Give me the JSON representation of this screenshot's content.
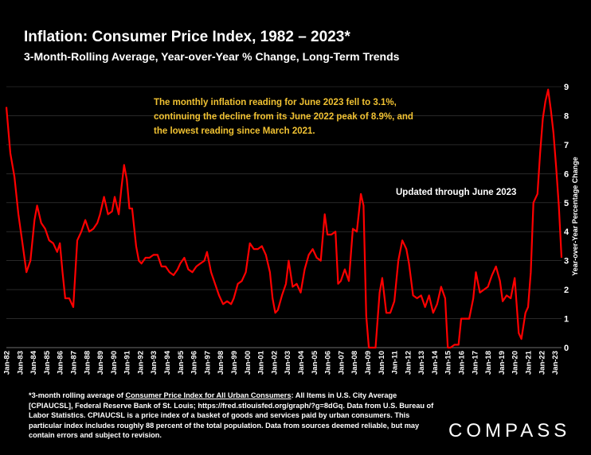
{
  "title": "Inflation: Consumer Price Index, 1982 – 2023*",
  "subtitle": "3-Month-Rolling Average, Year-over-Year % Change, Long-Term Trends",
  "annotation": "The monthly inflation reading for June 2023 fell to 3.1%, continuing the decline from its June 2022 peak of 8.9%, and the lowest reading since March 2021.",
  "updated_note": "Updated through June 2023",
  "footnote": {
    "prefix": "*3-month rolling average of ",
    "link_text": "Consumer Price Index for All Urban Consumers",
    "rest": ": All Items in U.S. City Average [CPIAUCSL], Federal Reserve Bank of St. Louis; https://fred.stlouisfed.org/graph/?g=8dGq. Data from U.S. Bureau of Labor Statistics. CPIAUCSL is a price index of a basket of goods and services paid by urban consumers. This particular index includes roughly 88 percent of the total population. Data from sources deemed reliable, but may contain errors and subject to revision."
  },
  "logo": "COMPASS",
  "colors": {
    "background": "#000000",
    "line": "#ff0000",
    "annotation": "#f1c232",
    "grid": "#404040"
  },
  "chart_data": {
    "type": "line",
    "title": "Inflation: Consumer Price Index, 1982 – 2023*",
    "ylabel": "Year-over-Year Percentage Change",
    "ylim": [
      0,
      9
    ],
    "yticks": [
      0,
      1,
      2,
      3,
      4,
      5,
      6,
      7,
      8,
      9
    ],
    "grid": true,
    "x_tick_labels": [
      "Jan-82",
      "Jan-83",
      "Jan-84",
      "Jan-85",
      "Jan-86",
      "Jan-87",
      "Jan-88",
      "Jan-89",
      "Jan-90",
      "Jan-91",
      "Jan-92",
      "Jan-93",
      "Jan-94",
      "Jan-95",
      "Jan-96",
      "Jan-97",
      "Jan-98",
      "Jan-99",
      "Jan-00",
      "Jan-01",
      "Jan-02",
      "Jan-03",
      "Jan-04",
      "Jan-05",
      "Jan-06",
      "Jan-07",
      "Jan-08",
      "Jan-09",
      "Jan-10",
      "Jan-11",
      "Jan-12",
      "Jan-13",
      "Jan-14",
      "Jan-15",
      "Jan-16",
      "Jan-17",
      "Jan-18",
      "Jan-19",
      "Jan-20",
      "Jan-21",
      "Jan-22",
      "Jan-23"
    ],
    "series": [
      {
        "values": [
          [
            1982.0,
            8.3
          ],
          [
            1982.3,
            6.7
          ],
          [
            1982.6,
            5.9
          ],
          [
            1982.9,
            4.6
          ],
          [
            1983.2,
            3.6
          ],
          [
            1983.5,
            2.6
          ],
          [
            1983.8,
            3.0
          ],
          [
            1984.1,
            4.4
          ],
          [
            1984.3,
            4.9
          ],
          [
            1984.6,
            4.3
          ],
          [
            1984.9,
            4.1
          ],
          [
            1985.2,
            3.7
          ],
          [
            1985.5,
            3.6
          ],
          [
            1985.8,
            3.3
          ],
          [
            1986.0,
            3.6
          ],
          [
            1986.2,
            2.6
          ],
          [
            1986.4,
            1.7
          ],
          [
            1986.7,
            1.7
          ],
          [
            1987.0,
            1.4
          ],
          [
            1987.3,
            3.7
          ],
          [
            1987.6,
            4.0
          ],
          [
            1987.9,
            4.4
          ],
          [
            1988.2,
            4.0
          ],
          [
            1988.5,
            4.1
          ],
          [
            1988.8,
            4.3
          ],
          [
            1989.0,
            4.6
          ],
          [
            1989.3,
            5.2
          ],
          [
            1989.6,
            4.6
          ],
          [
            1989.9,
            4.7
          ],
          [
            1990.1,
            5.2
          ],
          [
            1990.4,
            4.6
          ],
          [
            1990.6,
            5.5
          ],
          [
            1990.8,
            6.3
          ],
          [
            1991.0,
            5.8
          ],
          [
            1991.2,
            4.8
          ],
          [
            1991.4,
            4.8
          ],
          [
            1991.7,
            3.5
          ],
          [
            1991.9,
            3.0
          ],
          [
            1992.1,
            2.9
          ],
          [
            1992.4,
            3.1
          ],
          [
            1992.7,
            3.1
          ],
          [
            1993.0,
            3.2
          ],
          [
            1993.3,
            3.2
          ],
          [
            1993.6,
            2.8
          ],
          [
            1993.9,
            2.8
          ],
          [
            1994.2,
            2.6
          ],
          [
            1994.5,
            2.5
          ],
          [
            1994.8,
            2.7
          ],
          [
            1995.0,
            2.9
          ],
          [
            1995.3,
            3.1
          ],
          [
            1995.6,
            2.7
          ],
          [
            1995.9,
            2.6
          ],
          [
            1996.2,
            2.8
          ],
          [
            1996.5,
            2.9
          ],
          [
            1996.8,
            3.0
          ],
          [
            1997.0,
            3.3
          ],
          [
            1997.3,
            2.6
          ],
          [
            1997.6,
            2.2
          ],
          [
            1997.9,
            1.8
          ],
          [
            1998.2,
            1.5
          ],
          [
            1998.5,
            1.6
          ],
          [
            1998.8,
            1.5
          ],
          [
            1999.0,
            1.7
          ],
          [
            1999.3,
            2.2
          ],
          [
            1999.6,
            2.3
          ],
          [
            1999.9,
            2.6
          ],
          [
            2000.2,
            3.6
          ],
          [
            2000.5,
            3.4
          ],
          [
            2000.8,
            3.4
          ],
          [
            2001.1,
            3.5
          ],
          [
            2001.4,
            3.2
          ],
          [
            2001.7,
            2.6
          ],
          [
            2001.9,
            1.7
          ],
          [
            2002.1,
            1.2
          ],
          [
            2002.3,
            1.3
          ],
          [
            2002.6,
            1.8
          ],
          [
            2002.9,
            2.2
          ],
          [
            2003.1,
            3.0
          ],
          [
            2003.4,
            2.1
          ],
          [
            2003.7,
            2.2
          ],
          [
            2004.0,
            1.9
          ],
          [
            2004.3,
            2.7
          ],
          [
            2004.6,
            3.2
          ],
          [
            2004.9,
            3.4
          ],
          [
            2005.2,
            3.1
          ],
          [
            2005.5,
            3.0
          ],
          [
            2005.8,
            4.6
          ],
          [
            2006.0,
            3.9
          ],
          [
            2006.3,
            3.9
          ],
          [
            2006.6,
            4.0
          ],
          [
            2006.8,
            2.2
          ],
          [
            2007.0,
            2.3
          ],
          [
            2007.3,
            2.7
          ],
          [
            2007.6,
            2.3
          ],
          [
            2007.9,
            4.1
          ],
          [
            2008.2,
            4.0
          ],
          [
            2008.5,
            5.3
          ],
          [
            2008.7,
            4.9
          ],
          [
            2008.9,
            1.1
          ],
          [
            2009.1,
            0.0
          ],
          [
            2009.3,
            -1.2
          ],
          [
            2009.6,
            -1.5
          ],
          [
            2009.9,
            1.9
          ],
          [
            2010.1,
            2.4
          ],
          [
            2010.4,
            1.2
          ],
          [
            2010.7,
            1.2
          ],
          [
            2011.0,
            1.6
          ],
          [
            2011.3,
            3.0
          ],
          [
            2011.6,
            3.7
          ],
          [
            2011.9,
            3.4
          ],
          [
            2012.1,
            2.9
          ],
          [
            2012.4,
            1.8
          ],
          [
            2012.7,
            1.7
          ],
          [
            2013.0,
            1.8
          ],
          [
            2013.3,
            1.4
          ],
          [
            2013.6,
            1.8
          ],
          [
            2013.9,
            1.2
          ],
          [
            2014.2,
            1.5
          ],
          [
            2014.5,
            2.1
          ],
          [
            2014.8,
            1.7
          ],
          [
            2015.0,
            0.0
          ],
          [
            2015.2,
            -0.1
          ],
          [
            2015.5,
            0.1
          ],
          [
            2015.8,
            0.1
          ],
          [
            2016.0,
            1.0
          ],
          [
            2016.3,
            1.0
          ],
          [
            2016.6,
            1.0
          ],
          [
            2016.9,
            1.7
          ],
          [
            2017.1,
            2.6
          ],
          [
            2017.4,
            1.9
          ],
          [
            2017.7,
            2.0
          ],
          [
            2018.0,
            2.1
          ],
          [
            2018.3,
            2.5
          ],
          [
            2018.6,
            2.8
          ],
          [
            2018.9,
            2.3
          ],
          [
            2019.1,
            1.6
          ],
          [
            2019.4,
            1.8
          ],
          [
            2019.7,
            1.7
          ],
          [
            2020.0,
            2.4
          ],
          [
            2020.3,
            0.5
          ],
          [
            2020.5,
            0.3
          ],
          [
            2020.8,
            1.2
          ],
          [
            2021.0,
            1.4
          ],
          [
            2021.2,
            2.6
          ],
          [
            2021.4,
            5.0
          ],
          [
            2021.7,
            5.3
          ],
          [
            2021.9,
            6.7
          ],
          [
            2022.1,
            7.9
          ],
          [
            2022.3,
            8.5
          ],
          [
            2022.5,
            8.9
          ],
          [
            2022.7,
            8.2
          ],
          [
            2022.9,
            7.4
          ],
          [
            2023.1,
            6.2
          ],
          [
            2023.3,
            4.9
          ],
          [
            2023.5,
            3.1
          ]
        ]
      }
    ]
  }
}
